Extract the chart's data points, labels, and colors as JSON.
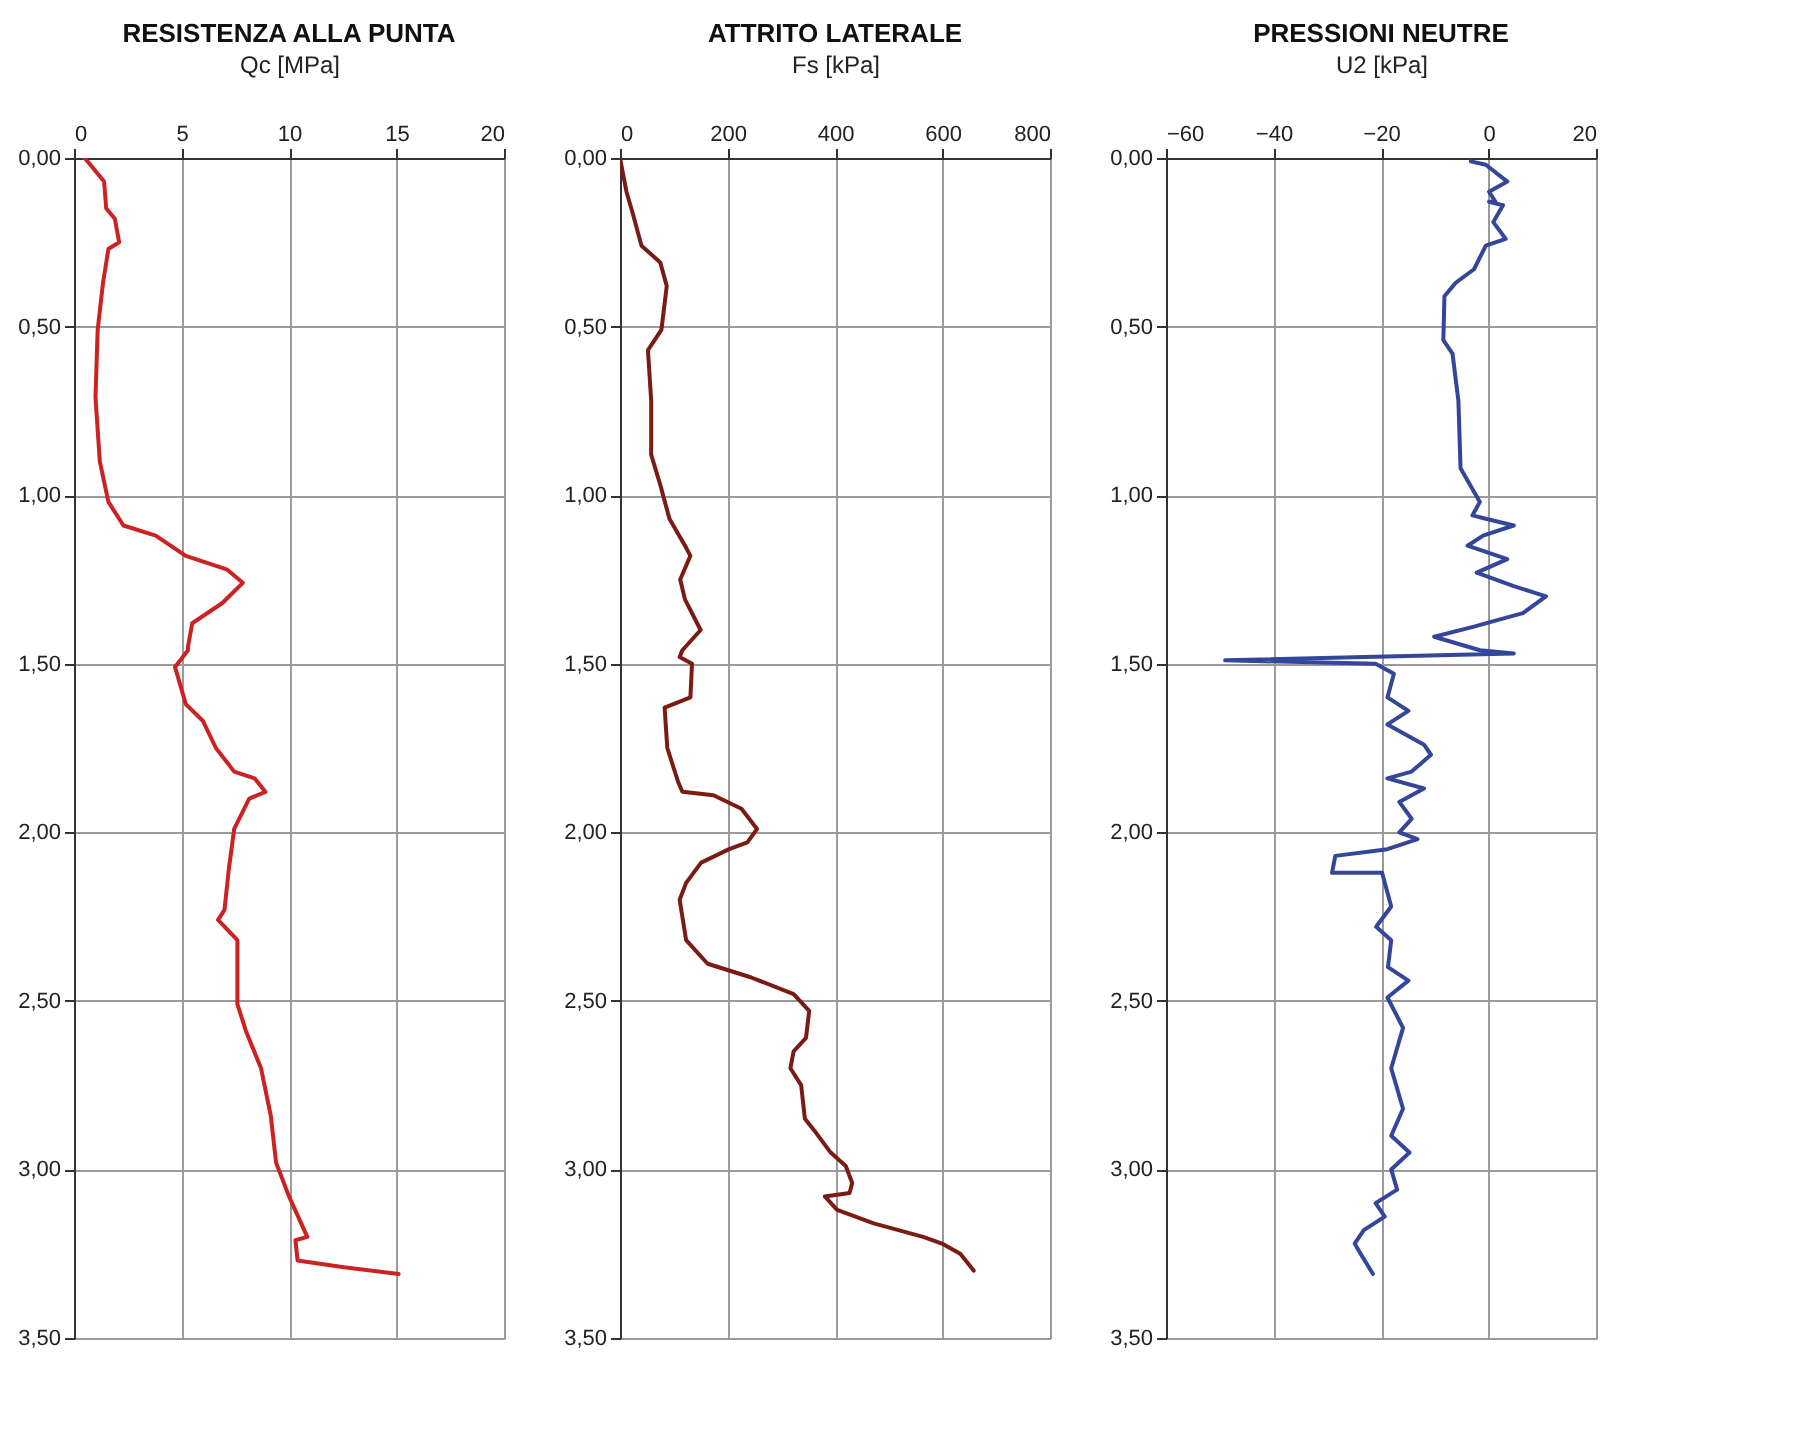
{
  "chart_data": [
    {
      "type": "line",
      "title": "RESISTENZA ALLA PUNTA",
      "xlabel": "Qc [MPa]",
      "xlim": [
        0,
        20
      ],
      "xticks": [
        0,
        5,
        10,
        15,
        20
      ],
      "ylim": [
        3.5,
        0
      ],
      "yticks": [
        {
          "value": 0,
          "label": "0,00"
        },
        {
          "value": 0.5,
          "label": "0,50"
        },
        {
          "value": 1,
          "label": "1,00"
        },
        {
          "value": 1.5,
          "label": "1,50"
        },
        {
          "value": 2,
          "label": "2,00"
        },
        {
          "value": 2.5,
          "label": "2,50"
        },
        {
          "value": 3,
          "label": "3,00"
        },
        {
          "value": 3.5,
          "label": "3,50"
        }
      ],
      "grid": true,
      "line_style": "solid",
      "series": [
        {
          "color": "#cc2222",
          "x": [
            0.5,
            1.4,
            1.5,
            1.9,
            2.1,
            1.6,
            1.35,
            1.1,
            1.0,
            1.2,
            1.6,
            2.3,
            3.8,
            5.2,
            7.1,
            7.85,
            6.9,
            5.5,
            5.3,
            5.3,
            4.7,
            5.2,
            6.0,
            6.6,
            7.45,
            8.4,
            8.9,
            8.15,
            7.45,
            7.2,
            7.0,
            6.7,
            7.6,
            7.6,
            8.0,
            8.7,
            9.15,
            9.4,
            10.0,
            10.85,
            10.3,
            10.4,
            12.55,
            15.1
          ],
          "values": [
            0.0,
            0.07,
            0.15,
            0.18,
            0.25,
            0.27,
            0.37,
            0.51,
            0.71,
            0.9,
            1.02,
            1.09,
            1.12,
            1.18,
            1.22,
            1.26,
            1.32,
            1.38,
            1.45,
            1.46,
            1.51,
            1.62,
            1.67,
            1.75,
            1.82,
            1.84,
            1.88,
            1.9,
            1.99,
            2.11,
            2.23,
            2.26,
            2.32,
            2.51,
            2.59,
            2.7,
            2.84,
            2.98,
            3.08,
            3.2,
            3.21,
            3.27,
            3.29,
            3.31
          ]
        }
      ]
    },
    {
      "type": "line",
      "title": "ATTRITO LATERALE",
      "xlabel": "Fs [kPa]",
      "xlim": [
        0,
        800
      ],
      "xticks": [
        0,
        200,
        400,
        600,
        800
      ],
      "ylim": [
        3.5,
        0
      ],
      "yticks": [
        {
          "value": 0,
          "label": "0,00"
        },
        {
          "value": 0.5,
          "label": "0,50"
        },
        {
          "value": 1,
          "label": "1,00"
        },
        {
          "value": 1.5,
          "label": "1,50"
        },
        {
          "value": 2,
          "label": "2,00"
        },
        {
          "value": 2.5,
          "label": "2,50"
        },
        {
          "value": 3,
          "label": "3,00"
        },
        {
          "value": 3.5,
          "label": "3,50"
        }
      ],
      "grid": true,
      "line_style": "solid",
      "series": [
        {
          "color": "#7a1c14",
          "x": [
            0,
            12,
            23,
            40,
            75,
            87,
            77,
            52,
            58,
            58,
            75,
            92,
            121,
            131,
            112,
            121,
            150,
            116,
            111,
            134,
            131,
            83,
            88,
            108,
            116,
            174,
            226,
            255,
            237,
            203,
            151,
            123,
            111,
            123,
            163,
            243,
            323,
            352,
            346,
            323,
            317,
            337,
            344,
            364,
            392,
            420,
            432,
            427,
            381,
            404,
            472,
            564,
            599,
            633,
            658
          ],
          "values": [
            0.0,
            0.1,
            0.16,
            0.26,
            0.31,
            0.38,
            0.51,
            0.57,
            0.72,
            0.88,
            0.97,
            1.07,
            1.15,
            1.18,
            1.25,
            1.31,
            1.4,
            1.46,
            1.48,
            1.5,
            1.6,
            1.63,
            1.75,
            1.85,
            1.88,
            1.89,
            1.93,
            1.99,
            2.03,
            2.05,
            2.09,
            2.15,
            2.2,
            2.32,
            2.39,
            2.43,
            2.48,
            2.53,
            2.61,
            2.65,
            2.7,
            2.75,
            2.85,
            2.89,
            2.95,
            2.99,
            3.04,
            3.07,
            3.08,
            3.12,
            3.16,
            3.2,
            3.22,
            3.25,
            3.3
          ]
        }
      ]
    },
    {
      "type": "line",
      "title": "PRESSIONI NEUTRE",
      "xlabel": "U2 [kPa]",
      "xlim": [
        -60,
        20
      ],
      "xticks": [
        -60,
        -40,
        -20,
        0,
        20
      ],
      "ylim": [
        3.5,
        0
      ],
      "yticks": [
        {
          "value": 0,
          "label": "0,00"
        },
        {
          "value": 0.5,
          "label": "0,50"
        },
        {
          "value": 1,
          "label": "1,00"
        },
        {
          "value": 1.5,
          "label": "1,50"
        },
        {
          "value": 2,
          "label": "2,00"
        },
        {
          "value": 2.5,
          "label": "2,50"
        },
        {
          "value": 3,
          "label": "3,00"
        },
        {
          "value": 3.5,
          "label": "3,50"
        }
      ],
      "grid": true,
      "line_style": "solid",
      "series": [
        {
          "color": "#34469a",
          "x": [
            -3.3,
            -0.5,
            3.5,
            0.1,
            1.3,
            0.1,
            2.7,
            0.9,
            3.2,
            -0.5,
            -2.7,
            -6.1,
            -8.2,
            -8.4,
            -6.7,
            -5.6,
            -5.2,
            -2.7,
            -1.6,
            -3.0,
            -0.5,
            4.7,
            -1.0,
            -3.9,
            3.5,
            -2.2,
            4.7,
            10.7,
            6.4,
            1.8,
            -2.7,
            -10.1,
            -1.6,
            4.7,
            -49,
            -21,
            -17.6,
            -18.8,
            -14.9,
            -18.8,
            -12.0,
            -10.7,
            -14.3,
            -18.8,
            -12.0,
            -16.6,
            -14.3,
            -16.6,
            -13.2,
            -18.8,
            -28.5,
            -29.1,
            -19.8,
            -18.1,
            -20.9,
            -18.1,
            -18.7,
            -14.9,
            -18.8,
            -15.9,
            -18.1,
            -15.9,
            -18.1,
            -14.7,
            -18.1,
            -17.0,
            -21.0,
            -19.3,
            -23.2,
            -24.9,
            -23.8,
            -21.5
          ],
          "values": [
            0.01,
            0.02,
            0.07,
            0.1,
            0.13,
            0.13,
            0.14,
            0.19,
            0.24,
            0.26,
            0.33,
            0.37,
            0.41,
            0.54,
            0.58,
            0.72,
            0.92,
            0.99,
            1.02,
            1.06,
            1.07,
            1.09,
            1.12,
            1.15,
            1.19,
            1.23,
            1.27,
            1.3,
            1.35,
            1.37,
            1.39,
            1.42,
            1.46,
            1.47,
            1.49,
            1.5,
            1.53,
            1.6,
            1.64,
            1.68,
            1.74,
            1.77,
            1.82,
            1.84,
            1.87,
            1.91,
            1.96,
            2.0,
            2.02,
            2.05,
            2.07,
            2.12,
            2.12,
            2.22,
            2.28,
            2.32,
            2.4,
            2.44,
            2.49,
            2.58,
            2.7,
            2.82,
            2.9,
            2.95,
            3.0,
            3.06,
            3.1,
            3.14,
            3.18,
            3.22,
            3.25,
            3.31
          ]
        }
      ]
    }
  ]
}
